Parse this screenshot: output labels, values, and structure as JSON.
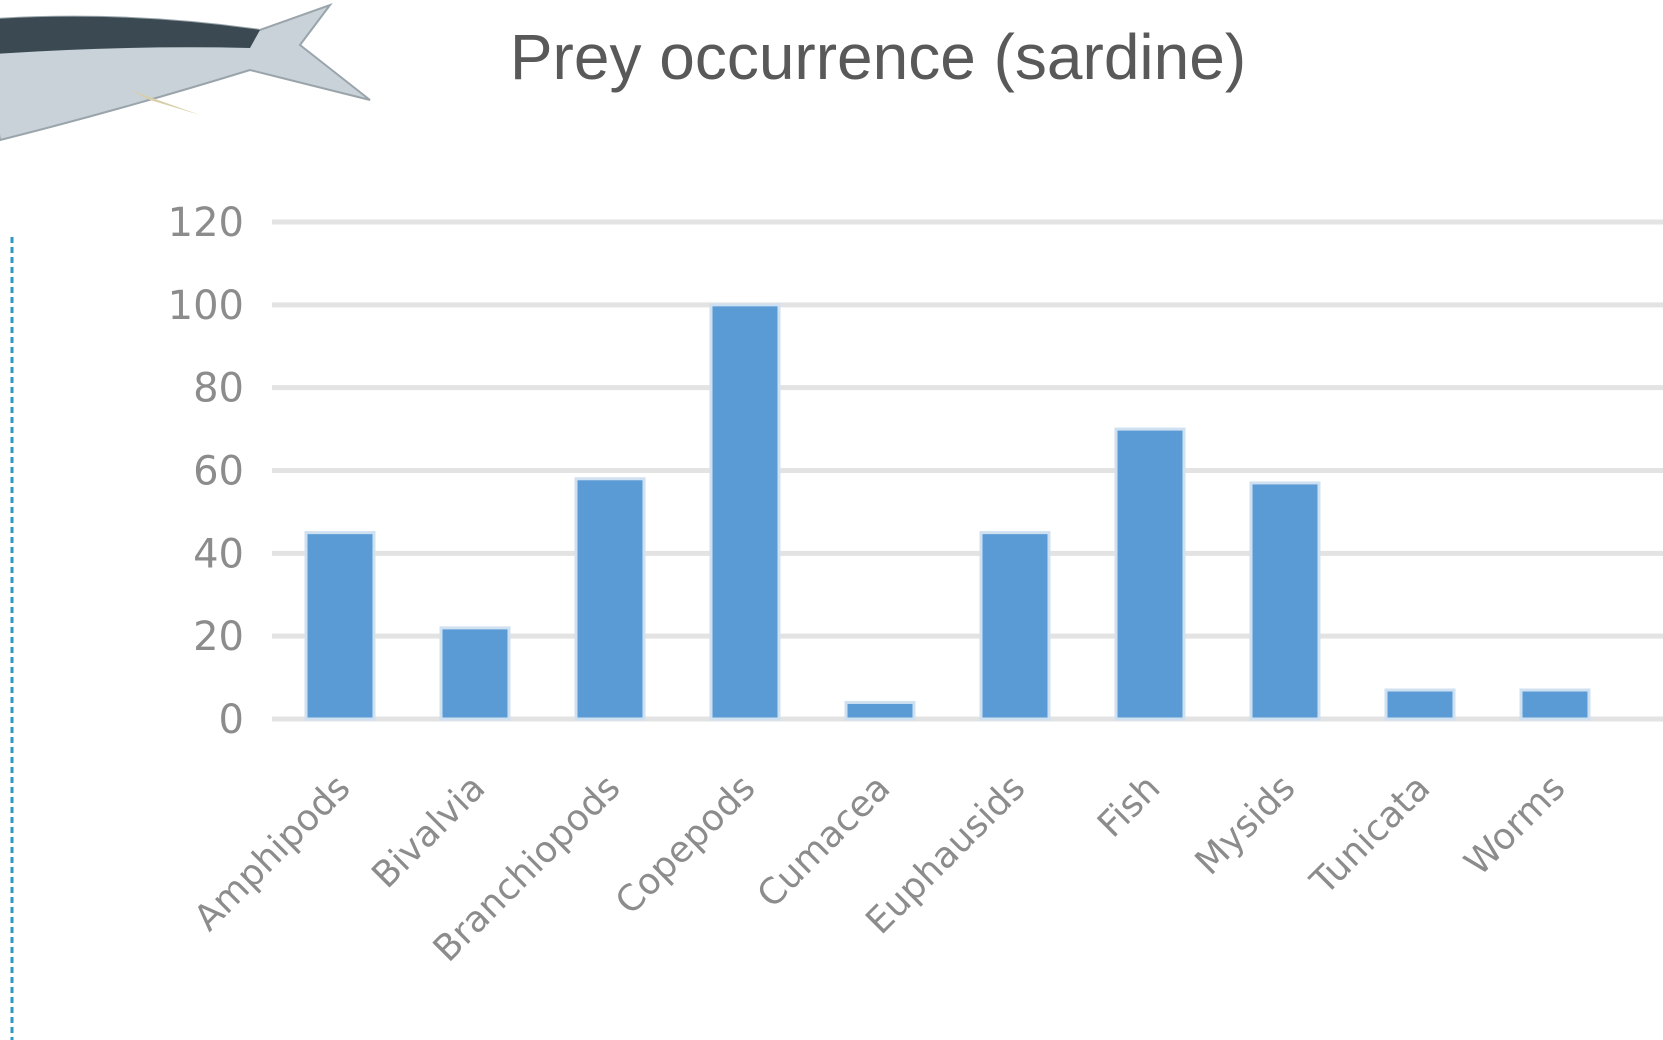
{
  "chart_data": {
    "type": "bar",
    "title": "Prey occurrence (sardine)",
    "categories": [
      "Amphipods",
      "Bivalvia",
      "Branchiopods",
      "Copepods",
      "Cumacea",
      "Euphausids",
      "Fish",
      "Mysids",
      "Tunicata",
      "Worms"
    ],
    "values": [
      45,
      22,
      58,
      100,
      4,
      45,
      70,
      57,
      7,
      7
    ],
    "color": "#5b9bd5",
    "ylim": [
      0,
      120
    ],
    "yticks": [
      0,
      20,
      40,
      60,
      80,
      100,
      120
    ],
    "grid": true
  }
}
